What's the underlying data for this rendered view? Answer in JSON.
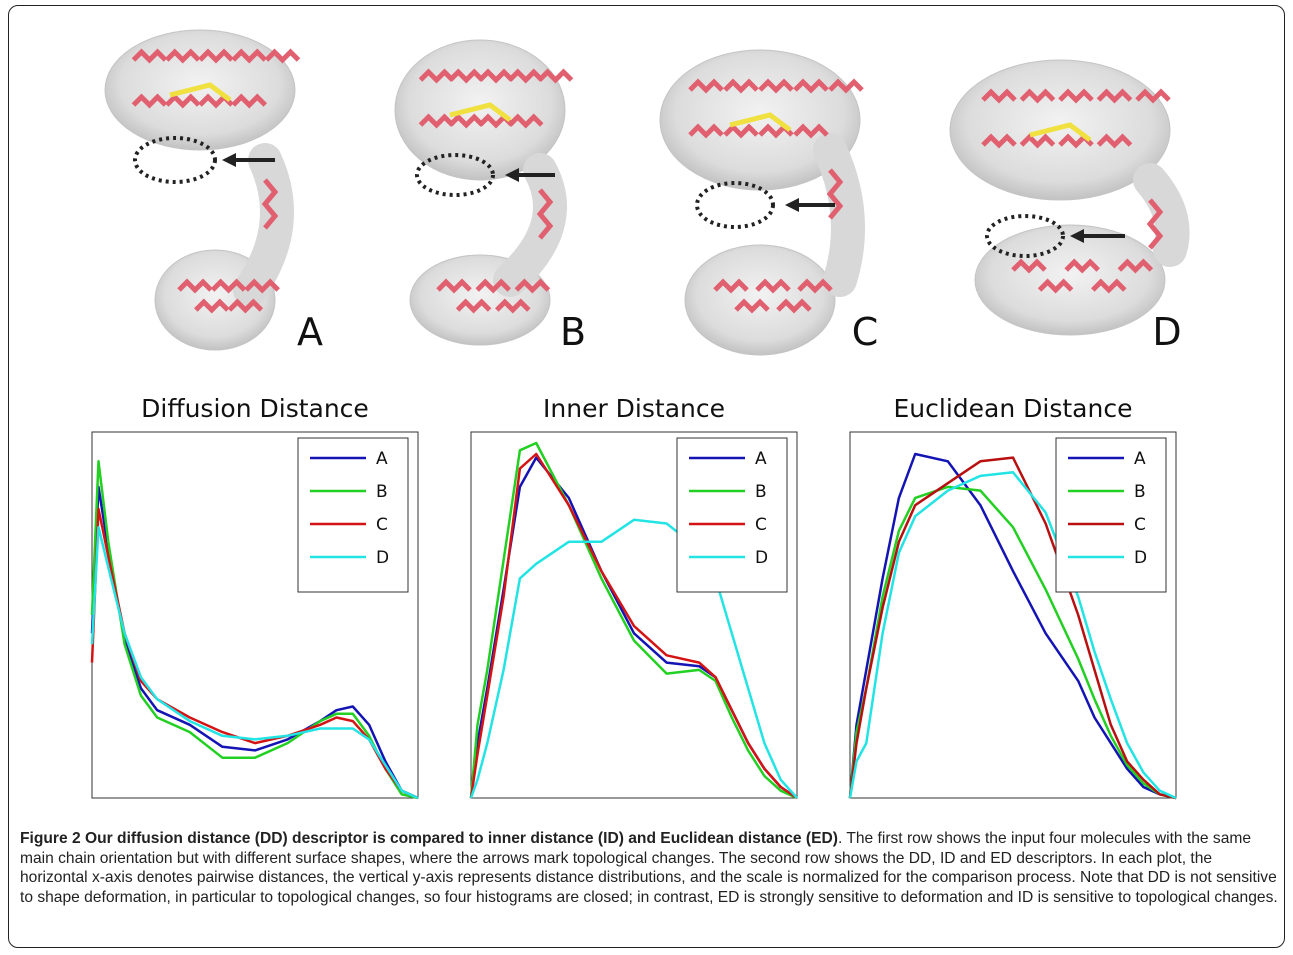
{
  "panels": [
    "A",
    "B",
    "C",
    "D"
  ],
  "chart_data": [
    {
      "type": "line",
      "title": "Diffusion Distance",
      "legend": "upper right",
      "xlim": [
        0,
        1
      ],
      "ylim": [
        0,
        1
      ],
      "x": [
        0,
        0.02,
        0.05,
        0.1,
        0.15,
        0.2,
        0.3,
        0.4,
        0.5,
        0.6,
        0.7,
        0.75,
        0.8,
        0.85,
        0.9,
        0.95,
        1.0
      ],
      "series": [
        {
          "name": "A",
          "color": "#1414b4",
          "values": [
            0.45,
            0.85,
            0.68,
            0.43,
            0.3,
            0.24,
            0.2,
            0.14,
            0.13,
            0.16,
            0.21,
            0.24,
            0.25,
            0.2,
            0.1,
            0.02,
            0
          ]
        },
        {
          "name": "B",
          "color": "#22d022",
          "values": [
            0.5,
            0.92,
            0.7,
            0.42,
            0.28,
            0.22,
            0.18,
            0.11,
            0.11,
            0.15,
            0.21,
            0.23,
            0.23,
            0.17,
            0.08,
            0.01,
            0
          ]
        },
        {
          "name": "C",
          "color": "#d41414",
          "values": [
            0.37,
            0.79,
            0.66,
            0.45,
            0.32,
            0.27,
            0.22,
            0.18,
            0.15,
            0.17,
            0.2,
            0.22,
            0.21,
            0.16,
            0.08,
            0.02,
            0
          ]
        },
        {
          "name": "D",
          "color": "#22e4e4",
          "values": [
            0.42,
            0.74,
            0.63,
            0.45,
            0.33,
            0.27,
            0.21,
            0.17,
            0.16,
            0.17,
            0.19,
            0.19,
            0.19,
            0.16,
            0.09,
            0.02,
            0
          ]
        }
      ]
    },
    {
      "type": "line",
      "title": "Inner Distance",
      "legend": "upper right",
      "xlim": [
        0,
        1
      ],
      "ylim": [
        0,
        1
      ],
      "x": [
        0,
        0.02,
        0.05,
        0.1,
        0.15,
        0.2,
        0.3,
        0.4,
        0.5,
        0.6,
        0.7,
        0.75,
        0.8,
        0.85,
        0.9,
        0.95,
        1.0
      ],
      "series": [
        {
          "name": "A",
          "color": "#1414b4",
          "values": [
            0,
            0.15,
            0.3,
            0.57,
            0.85,
            0.93,
            0.82,
            0.62,
            0.45,
            0.37,
            0.36,
            0.33,
            0.24,
            0.15,
            0.08,
            0.03,
            0
          ]
        },
        {
          "name": "B",
          "color": "#22d022",
          "values": [
            0,
            0.2,
            0.35,
            0.65,
            0.95,
            0.97,
            0.8,
            0.6,
            0.43,
            0.34,
            0.35,
            0.32,
            0.22,
            0.13,
            0.06,
            0.02,
            0
          ]
        },
        {
          "name": "C",
          "color": "#d41414",
          "values": [
            0,
            0.12,
            0.28,
            0.55,
            0.9,
            0.94,
            0.8,
            0.62,
            0.47,
            0.39,
            0.37,
            0.33,
            0.24,
            0.15,
            0.08,
            0.03,
            0
          ]
        },
        {
          "name": "D",
          "color": "#22e4e4",
          "values": [
            0,
            0.05,
            0.15,
            0.35,
            0.6,
            0.64,
            0.7,
            0.7,
            0.76,
            0.75,
            0.68,
            0.6,
            0.45,
            0.3,
            0.15,
            0.05,
            0
          ]
        }
      ]
    },
    {
      "type": "line",
      "title": "Euclidean Distance",
      "legend": "upper right",
      "xlim": [
        0,
        1
      ],
      "ylim": [
        0,
        1
      ],
      "x": [
        0,
        0.02,
        0.05,
        0.1,
        0.15,
        0.2,
        0.3,
        0.4,
        0.5,
        0.6,
        0.7,
        0.75,
        0.8,
        0.85,
        0.9,
        0.95,
        1.0
      ],
      "series": [
        {
          "name": "A",
          "color": "#1414b4",
          "values": [
            0,
            0.2,
            0.35,
            0.6,
            0.82,
            0.94,
            0.92,
            0.8,
            0.62,
            0.45,
            0.32,
            0.22,
            0.15,
            0.08,
            0.03,
            0.01,
            0
          ]
        },
        {
          "name": "B",
          "color": "#22d022",
          "values": [
            0,
            0.18,
            0.3,
            0.55,
            0.73,
            0.82,
            0.85,
            0.84,
            0.74,
            0.57,
            0.38,
            0.27,
            0.17,
            0.09,
            0.04,
            0.01,
            0
          ]
        },
        {
          "name": "C",
          "color": "#b81010",
          "values": [
            0,
            0.15,
            0.3,
            0.52,
            0.7,
            0.8,
            0.86,
            0.92,
            0.93,
            0.75,
            0.5,
            0.35,
            0.2,
            0.1,
            0.05,
            0.01,
            0
          ]
        },
        {
          "name": "D",
          "color": "#22e4e4",
          "values": [
            0,
            0.1,
            0.15,
            0.45,
            0.67,
            0.77,
            0.84,
            0.88,
            0.89,
            0.78,
            0.55,
            0.4,
            0.27,
            0.15,
            0.07,
            0.02,
            0
          ]
        }
      ]
    }
  ],
  "caption": {
    "bold": "Figure 2 Our diffusion distance (DD) descriptor is compared to inner distance (ID) and Euclidean distance (ED)",
    "text": ". The first row shows the input four molecules with the same main chain orientation but with different surface shapes, where the arrows mark topological changes. The second row shows the DD, ID and ED descriptors. In each plot, the horizontal x-axis denotes pairwise distances, the vertical y-axis represents distance distributions, and the scale is normalized for the comparison process. Note that DD is not sensitive to shape deformation, in particular to topological changes, so four histograms are closed; in contrast, ED is strongly sensitive to deformation and ID is sensitive to topological changes."
  }
}
